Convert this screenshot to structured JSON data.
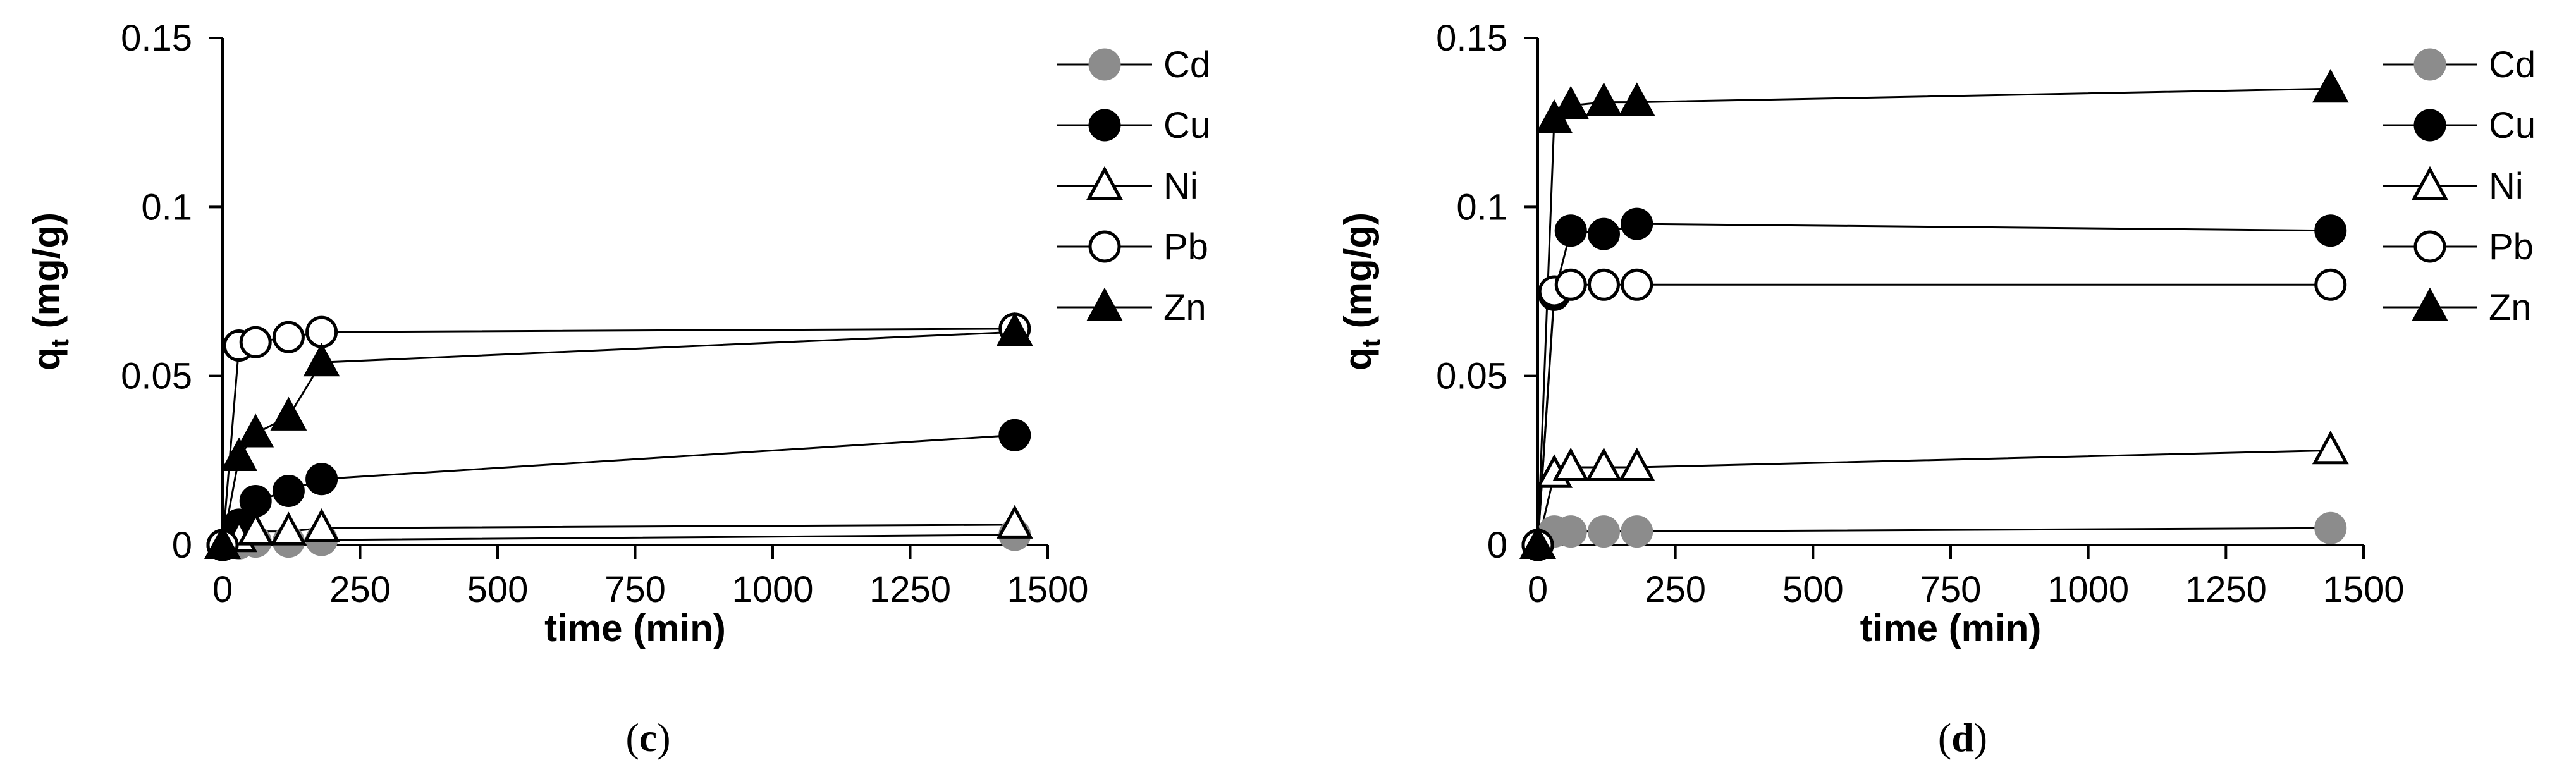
{
  "chart_data": [
    {
      "type": "line",
      "panel_label": "c",
      "xlabel": "time (min)",
      "ylabel_main": "q",
      "ylabel_sub": "t",
      "ylabel_rest": " (mg/g)",
      "xlim": [
        0,
        1500
      ],
      "ylim": [
        0,
        0.15
      ],
      "xticks": [
        0,
        250,
        500,
        750,
        1000,
        1250,
        1500
      ],
      "xtick_labels": [
        "0",
        "250",
        "500",
        "750",
        "1000",
        "1250",
        "1500"
      ],
      "yticks": [
        0,
        0.05,
        0.1,
        0.15
      ],
      "ytick_labels": [
        "0",
        "0.05",
        "0.1",
        "0.15"
      ],
      "grid": false,
      "legend_position": "right",
      "series": [
        {
          "name": "Cd",
          "marker": "circle",
          "fill": "#8c8c8c",
          "stroke": "#8c8c8c",
          "x": [
            0,
            30,
            60,
            120,
            180,
            1440
          ],
          "y": [
            0,
            0.0005,
            0.001,
            0.001,
            0.0015,
            0.003
          ]
        },
        {
          "name": "Cu",
          "marker": "circle",
          "fill": "#000000",
          "stroke": "#000000",
          "x": [
            0,
            30,
            60,
            120,
            180,
            1440
          ],
          "y": [
            0,
            0.006,
            0.013,
            0.016,
            0.0195,
            0.0325
          ]
        },
        {
          "name": "Ni",
          "marker": "triangle",
          "fill": "#ffffff",
          "stroke": "#000000",
          "x": [
            0,
            30,
            60,
            120,
            180,
            1440
          ],
          "y": [
            0,
            0.002,
            0.004,
            0.004,
            0.005,
            0.006
          ]
        },
        {
          "name": "Pb",
          "marker": "circle",
          "fill": "#ffffff",
          "stroke": "#000000",
          "x": [
            0,
            30,
            60,
            120,
            180,
            1440
          ],
          "y": [
            0,
            0.059,
            0.06,
            0.0615,
            0.063,
            0.064
          ]
        },
        {
          "name": "Zn",
          "marker": "triangle",
          "fill": "#000000",
          "stroke": "#000000",
          "x": [
            0,
            30,
            60,
            120,
            180,
            1440
          ],
          "y": [
            0,
            0.026,
            0.033,
            0.038,
            0.054,
            0.063
          ]
        }
      ]
    },
    {
      "type": "line",
      "panel_label": "d",
      "xlabel": "time (min)",
      "ylabel_main": "q",
      "ylabel_sub": "t",
      "ylabel_rest": " (mg/g)",
      "xlim": [
        0,
        1500
      ],
      "ylim": [
        0,
        0.15
      ],
      "xticks": [
        0,
        250,
        500,
        750,
        1000,
        1250,
        1500
      ],
      "xtick_labels": [
        "0",
        "250",
        "500",
        "750",
        "1000",
        "1250",
        "1500"
      ],
      "yticks": [
        0,
        0.05,
        0.1,
        0.15
      ],
      "ytick_labels": [
        "0",
        "0.05",
        "0.1",
        "0.15"
      ],
      "grid": false,
      "legend_position": "right",
      "series": [
        {
          "name": "Cd",
          "marker": "circle",
          "fill": "#8c8c8c",
          "stroke": "#8c8c8c",
          "x": [
            0,
            30,
            60,
            120,
            180,
            1440
          ],
          "y": [
            0,
            0.004,
            0.004,
            0.004,
            0.004,
            0.005
          ]
        },
        {
          "name": "Cu",
          "marker": "circle",
          "fill": "#000000",
          "stroke": "#000000",
          "x": [
            0,
            30,
            60,
            120,
            180,
            1440
          ],
          "y": [
            0,
            0.074,
            0.093,
            0.092,
            0.095,
            0.093
          ]
        },
        {
          "name": "Ni",
          "marker": "triangle",
          "fill": "#ffffff",
          "stroke": "#000000",
          "x": [
            0,
            30,
            60,
            120,
            180,
            1440
          ],
          "y": [
            0,
            0.021,
            0.023,
            0.023,
            0.023,
            0.028
          ]
        },
        {
          "name": "Pb",
          "marker": "circle",
          "fill": "#ffffff",
          "stroke": "#000000",
          "x": [
            0,
            30,
            60,
            120,
            180,
            1440
          ],
          "y": [
            0,
            0.075,
            0.077,
            0.077,
            0.077,
            0.077
          ]
        },
        {
          "name": "Zn",
          "marker": "triangle",
          "fill": "#000000",
          "stroke": "#000000",
          "x": [
            0,
            30,
            60,
            120,
            180,
            1440
          ],
          "y": [
            0,
            0.126,
            0.13,
            0.131,
            0.131,
            0.135
          ]
        }
      ]
    }
  ]
}
